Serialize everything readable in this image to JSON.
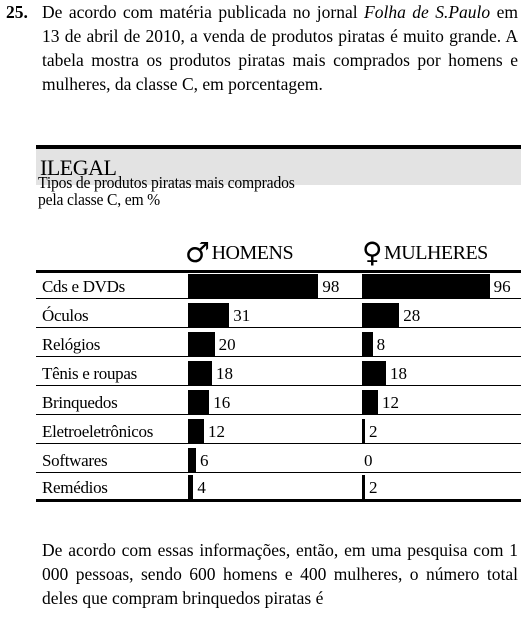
{
  "question": {
    "number": "25.",
    "intro_before": "De acordo com matéria publicada no jornal ",
    "newspaper": "Folha de S.Paulo",
    "intro_after": " em 13 de abril de 2010, a venda de produtos piratas é muito grande. A tabela mostra os produtos piratas mais comprados por homens e mulheres, da classe C, em porcentagem.",
    "closing": "De acordo com essas informações, então, em uma pesquisa com 1 000 pessoas, sendo 600 homens e 400 mulheres, o número total deles que compram brinquedos piratas é"
  },
  "box": {
    "header": "ILEGAL",
    "title_line1": "Tipos de produtos piratas mais comprados",
    "title_line2": "pela classe C, em %",
    "men_symbol": "♂",
    "men_label": "HOMENS",
    "women_symbol": "♀",
    "women_label": "MULHERES"
  },
  "chart_data": {
    "type": "bar",
    "title": "Tipos de produtos piratas mais comprados pela classe C, em %",
    "categories": [
      "Cds e DVDs",
      "Óculos",
      "Relógios",
      "Tênis e roupas",
      "Brinquedos",
      "Eletroeletrônicos",
      "Softwares",
      "Remédios"
    ],
    "series": [
      {
        "name": "HOMENS",
        "values": [
          98,
          31,
          20,
          18,
          16,
          12,
          6,
          4
        ]
      },
      {
        "name": "MULHERES",
        "values": [
          96,
          28,
          8,
          18,
          12,
          2,
          0,
          2
        ]
      }
    ]
  }
}
